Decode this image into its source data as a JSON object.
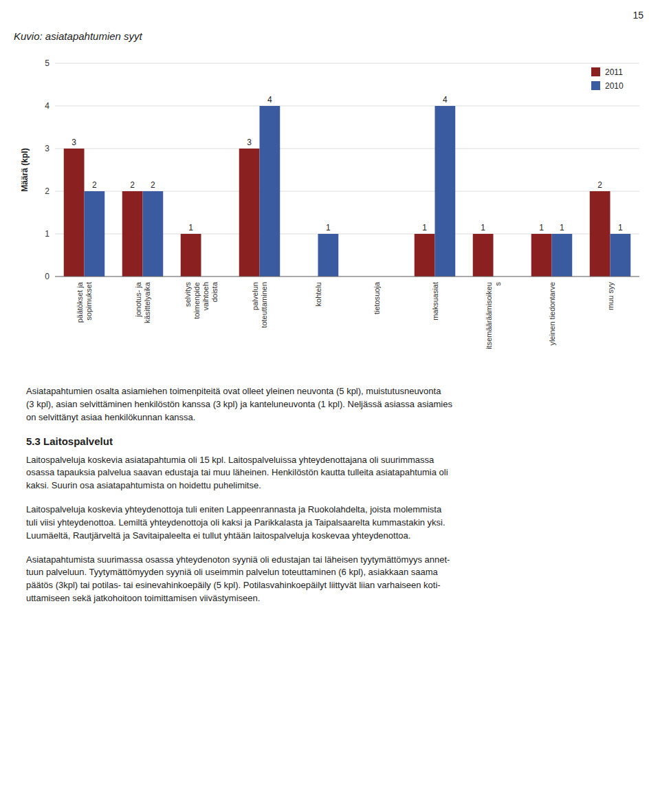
{
  "chart_data": {
    "type": "bar",
    "title": "Kuvio: asiatapahtumien syyt",
    "ylabel": "Määrä (kpl)",
    "categories": [
      "päätökset ja\nsopimukset",
      "jonotus- ja\nkäsittelyaika",
      "selvitys\ntoimenpide\nvaihtoeh\ndoista",
      "palvelun\ntoteuttaminen",
      "kohtelu",
      "tietosuoja",
      "maksuasiat",
      "itsemääräämisoikeu\ns",
      "yleinen tiedontarve",
      "muu syy"
    ],
    "series": [
      {
        "name": "2011",
        "color": "#8B2020",
        "values": [
          3,
          2,
          1,
          3,
          0,
          0,
          1,
          1,
          1,
          2
        ]
      },
      {
        "name": "2010",
        "color": "#3A5BA0",
        "values": [
          2,
          2,
          0,
          4,
          1,
          0,
          4,
          0,
          1,
          1
        ]
      }
    ],
    "ylim": [
      0,
      5
    ],
    "yticks": [
      0,
      1,
      2,
      3,
      4,
      5
    ],
    "grid": true,
    "legend": "upper right",
    "data_labels": true
  },
  "page_number": 15,
  "text1": "Asiatapahtumien osalta asiamiehen toimenpiteitä ovat olleet yleinen neuvonta (5 kpl), muistutusneuvonta\n(3 kpl), asian selvittäminen henkilöstön kanssa (3 kpl) ja kanteluneuvonta (1 kpl). Neljässä asiassa asiamies\non selvittänyt asiaa henkilökunnan kanssa.",
  "text2_heading": "5.3 Laitospalvelut",
  "text3": "Laitospalveluja koskevia asiatapahtumia oli 15 kpl. Laitospalveluissa yhteydenottajana oli suurimmassa\nosassa tapauksia palvelua saavan edustaja tai muu läheinen. Henkilöstön kautta tulleita asiatapahtumia oli\nkaksi. Suurin osa asiatapahtumista on hoidettu puhelimitse.",
  "text4": "Laitospalveluja koskevia yhteydenottoja tuli eniten Lappeenrannasta ja Ruokolahdelta, joista molemmista\ntuli viisi yhteydenottoa. Lemiltä yhteydenottoja oli kaksi ja Parikkalasta ja Taipalsaarelta kummastakin yksi.\nLuumäeltä, Rautjärveltä ja Savitaipaleelta ei tullut yhtään laitospalveluja koskevaa yhteydenottoa.",
  "text5": "Asiatapahtumista suurimassa osassa yhteydenoton syyniä oli edustajan tai läheisen tyytymättömyys annet-\ntuun palveluun. Tyytymättömyyden syyniä oli useimmin palvelun toteuttaminen (6 kpl), asiakkaan saama\npäätös (3kpl) tai potilas- tai esinevahinkoepäily (5 kpl). Potilasvahinkoepäilyt liittyvät liian varhaiseen koti-\nuttamiseen sekä jatkohoitoon toimittamisen viivästymiseen."
}
